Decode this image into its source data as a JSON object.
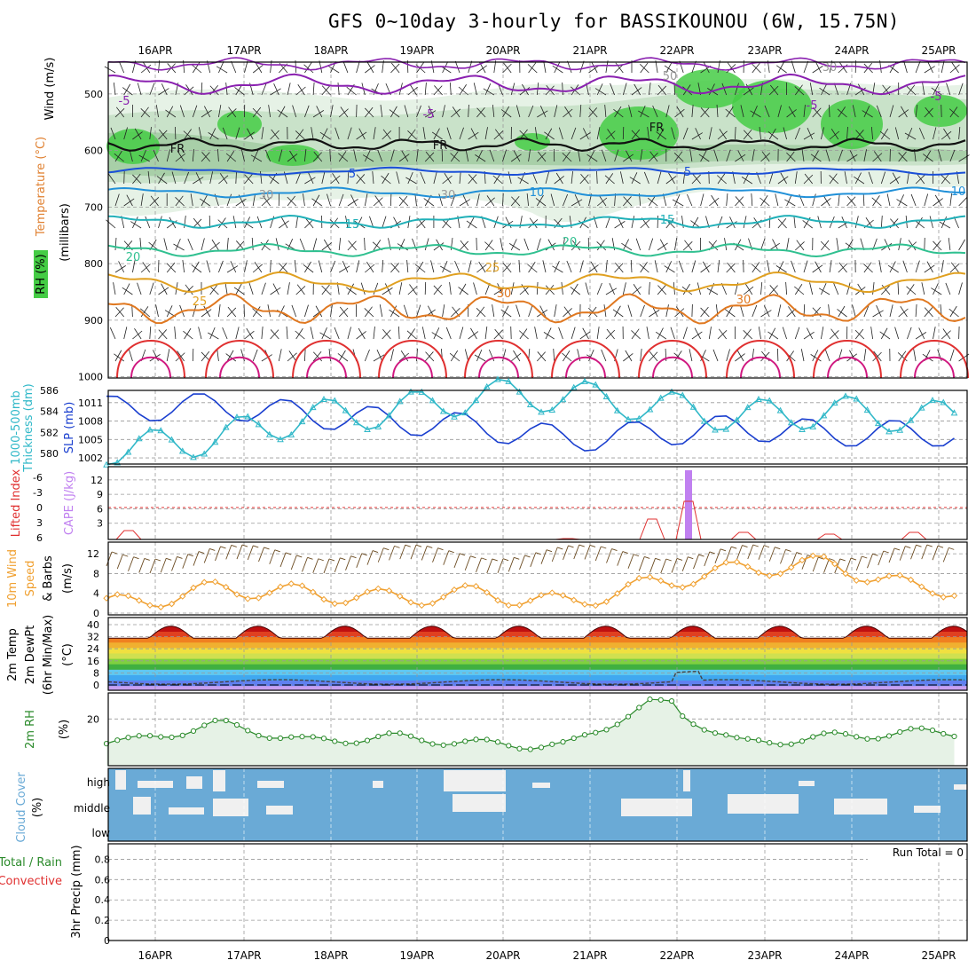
{
  "title": "GFS 0~10day 3-hourly for BASSIKOUNOU (6W, 15.75N)",
  "dates": [
    "16APR",
    "17APR",
    "18APR",
    "19APR",
    "20APR",
    "21APR",
    "22APR",
    "23APR",
    "24APR",
    "25APR"
  ],
  "colors": {
    "rh_green": "#45cc45",
    "temp_label": "#e08030",
    "dark_blue": "#1a3fcf",
    "cyan": "#30b8c8",
    "orange": "#f0a030",
    "purple": "#c080f0",
    "green_line": "#2a8a2a",
    "cloud_blue": "#6aaad6",
    "cloud_gap": "#f0f0f0",
    "red": "#e03030"
  },
  "panels": {
    "upper": {
      "ylabel_wind": "Wind (m/s)",
      "ylabel_temp": "Temperature (°C)",
      "ylabel_rh": "RH (%)",
      "ylabel_mb": "(millibars)",
      "yticks": [
        "500",
        "600",
        "700",
        "800",
        "900",
        "1000"
      ],
      "contour_labels": [
        "-5",
        "-5",
        "-5",
        "-5",
        "5",
        "5",
        "10",
        "10",
        "15",
        "15",
        "20",
        "20",
        "25",
        "25",
        "30",
        "30",
        "FR",
        "FR",
        "FR",
        "30",
        "30",
        "50",
        "30"
      ]
    },
    "slp": {
      "ylabel_a": "1000-500mb",
      "ylabel_b": "Thickness (dm)",
      "ylabel_c": "SLP (mb)",
      "left_ticks": [
        "586",
        "584",
        "582",
        "580"
      ],
      "right_ticks": [
        "1011",
        "1008",
        "1005",
        "1002"
      ]
    },
    "cape": {
      "ylabel_a": "Lifted Index",
      "ylabel_b": "CAPE (J/kg)",
      "left_ticks": [
        "-6",
        "-3",
        "0",
        "3",
        "6"
      ],
      "right_ticks": [
        "12",
        "9",
        "6",
        "3"
      ]
    },
    "wind10": {
      "ylabel_a": "10m Wind",
      "ylabel_b": "Speed",
      "ylabel_c": "& Barbs",
      "ylabel_d": "(m/s)",
      "ticks": [
        "12",
        "8",
        "4",
        "0"
      ]
    },
    "temp2m": {
      "ylabel_a": "2m Temp",
      "ylabel_b": "2m DewPt",
      "ylabel_c": "(6hr Min/Max)",
      "ylabel_d": "(°C)",
      "ticks": [
        "40",
        "32",
        "24",
        "16",
        "8",
        "0"
      ]
    },
    "rh2m": {
      "ylabel_a": "2m RH",
      "ylabel_b": "(%)",
      "ticks": [
        "20"
      ]
    },
    "cloud": {
      "ylabel_a": "Cloud Cover",
      "ylabel_b": "(%)",
      "levels": [
        "high",
        "middle",
        "low"
      ]
    },
    "precip": {
      "ylabel_a": "Total / Rain",
      "ylabel_b": "Convective",
      "ylabel_c": "3hr Precip (mm)",
      "ticks": [
        "0.8",
        "0.6",
        "0.4",
        "0.2",
        "0"
      ],
      "run_total": "Run Total = 0"
    }
  },
  "chart_data": [
    {
      "type": "line",
      "panel": "SLP and 1000-500mb thickness",
      "x": [
        "16APR",
        "17APR",
        "18APR",
        "19APR",
        "20APR",
        "21APR",
        "22APR",
        "23APR",
        "24APR",
        "25APR"
      ],
      "series": [
        {
          "name": "SLP (mb)",
          "values": [
            1010,
            1010.5,
            1009,
            1008,
            1007,
            1005,
            1006,
            1007,
            1006,
            1006
          ]
        },
        {
          "name": "1000-500mb Thickness (dm)",
          "values": [
            580.5,
            581.5,
            583.5,
            584,
            585.5,
            585.5,
            584.5,
            583.5,
            584,
            583.5
          ]
        }
      ],
      "ylim_left": [
        579,
        586
      ],
      "ylim_right": [
        1001,
        1013
      ]
    },
    {
      "type": "bar",
      "panel": "CAPE",
      "categories": [
        "22APR"
      ],
      "values": [
        14
      ],
      "ylim": [
        0,
        14
      ],
      "ylabel": "CAPE (J/kg)"
    },
    {
      "type": "line",
      "panel": "10m Wind Speed",
      "x": [
        "16APR",
        "17APR",
        "18APR",
        "19APR",
        "20APR",
        "21APR",
        "22APR",
        "23APR",
        "24APR",
        "25APR"
      ],
      "series": [
        {
          "name": "10m Wind Speed (m/s)",
          "values": [
            2,
            5,
            4,
            3,
            4,
            2,
            6,
            9,
            10,
            5
          ]
        }
      ],
      "ylim": [
        0,
        14
      ]
    },
    {
      "type": "line",
      "panel": "2m RH",
      "x": [
        "16APR",
        "17APR",
        "18APR",
        "19APR",
        "20APR",
        "21APR",
        "22APR",
        "23APR",
        "24APR",
        "25APR"
      ],
      "series": [
        {
          "name": "2m RH (%)",
          "values": [
            10,
            18,
            10,
            12,
            9,
            8,
            28,
            9,
            12,
            14
          ]
        }
      ],
      "ylim": [
        0,
        30
      ]
    },
    {
      "type": "bar",
      "panel": "3hr Precip",
      "categories": [],
      "values": [],
      "ylim": [
        0,
        0.9
      ],
      "ylabel": "3hr Precip (mm)"
    }
  ]
}
